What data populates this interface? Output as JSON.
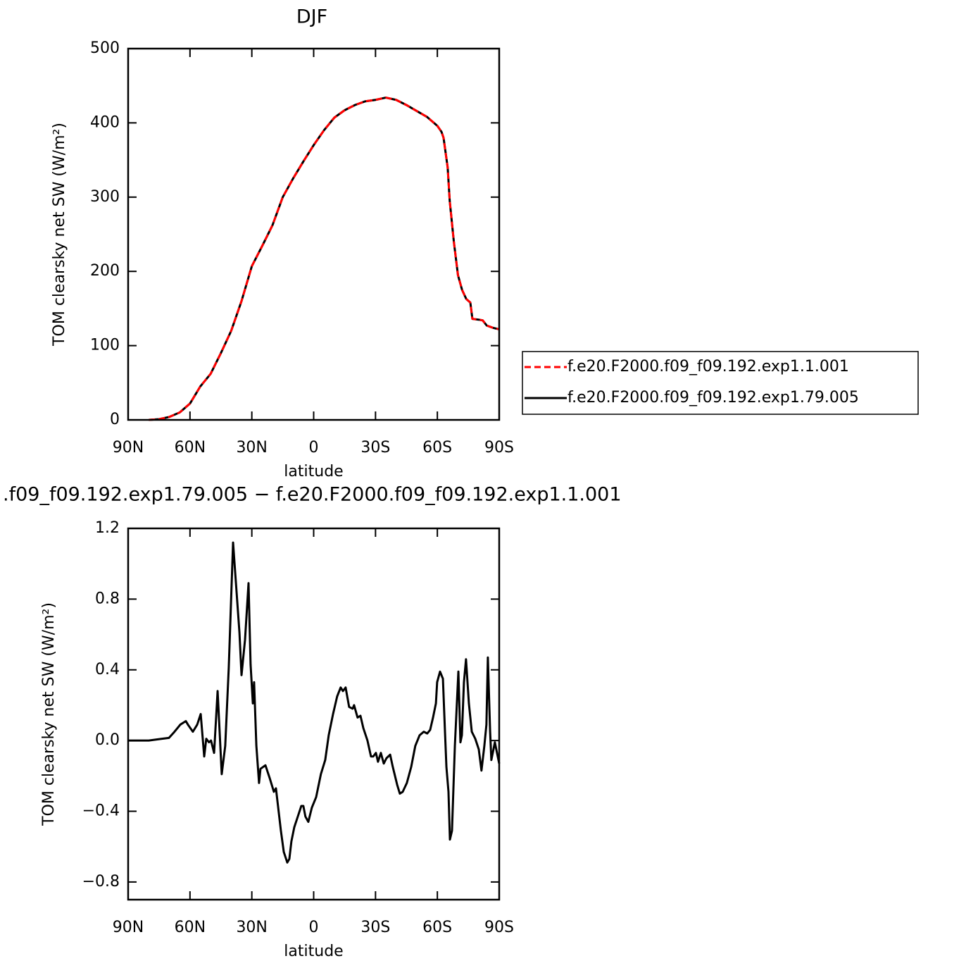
{
  "chart_data": [
    {
      "type": "line",
      "title": "DJF",
      "x_label": "latitude",
      "y_label": "TOM clearsky net SW (W/m²)",
      "x": [
        80,
        75,
        70,
        65,
        60,
        55,
        50,
        45,
        40,
        35,
        30,
        25,
        20,
        15,
        10,
        5,
        0,
        -5,
        -10,
        -15,
        -20,
        -25,
        -30,
        -35,
        -40,
        -45,
        -50,
        -55,
        -60,
        -62,
        -63,
        -65,
        -66,
        -68,
        -70,
        -72,
        -74,
        -76,
        -77,
        -80,
        -82,
        -84,
        -87,
        -90
      ],
      "xlim": [
        90,
        -90
      ],
      "xticks": [
        {
          "value": 90,
          "label": "90N"
        },
        {
          "value": 60,
          "label": "60N"
        },
        {
          "value": 30,
          "label": "30N"
        },
        0,
        {
          "value": -30,
          "label": "30S"
        },
        {
          "value": -60,
          "label": "60S"
        },
        {
          "value": -90,
          "label": "90S"
        }
      ],
      "ylim": [
        0,
        500
      ],
      "yticks": [
        0,
        100,
        200,
        300,
        400,
        500
      ],
      "legend": "right",
      "series": [
        {
          "name": "f.e20.F2000.f09_f09.192.exp1.1.001",
          "color": "#ff0000",
          "dash": "dashed",
          "values": [
            0,
            1,
            4,
            10,
            22,
            45,
            62,
            90,
            120,
            160,
            207,
            234,
            262,
            300,
            325,
            348,
            370,
            390,
            407,
            417,
            424,
            429,
            431,
            434,
            431,
            424,
            416,
            408,
            396,
            388,
            380,
            340,
            295,
            240,
            195,
            175,
            163,
            158,
            136,
            135,
            134,
            127,
            124,
            122
          ]
        },
        {
          "name": "f.e20.F2000.f09_f09.192.exp1.79.005",
          "color": "#000000",
          "dash": "solid",
          "values": [
            0,
            1,
            4,
            10,
            22,
            45,
            62,
            90,
            120,
            160,
            207,
            234,
            262,
            300,
            325,
            348,
            370,
            390,
            407,
            417,
            424,
            429,
            431,
            434,
            431,
            424,
            416,
            408,
            396,
            388,
            380,
            340,
            295,
            240,
            195,
            175,
            163,
            158,
            136,
            135,
            134,
            127,
            124,
            122
          ]
        }
      ]
    },
    {
      "type": "line",
      "title": ".f09_f09.192.exp1.79.005 − f.e20.F2000.f09_f09.192.exp1.1.001",
      "x_label": "latitude",
      "y_label": "TOM clearsky net SW (W/m²)",
      "x": [
        90,
        80,
        73.6,
        70.2,
        67.5,
        64.7,
        62,
        61,
        58.6,
        56.5,
        54.8,
        53.1,
        52.1,
        50.8,
        49.8,
        48.3,
        46.6,
        44.6,
        42.9,
        41.2,
        39.1,
        37.7,
        36,
        35,
        33.3,
        31.6,
        30.6,
        29.5,
        28.9,
        27.8,
        26.5,
        25.8,
        23.4,
        21.4,
        19.3,
        18.3,
        16.9,
        15.9,
        14.5,
        12.8,
        11.8,
        10.8,
        9.4,
        7.7,
        6,
        5,
        4,
        2.6,
        0.9,
        -1.2,
        -3.5,
        -5.6,
        -7.3,
        -9.4,
        -11.4,
        -13.1,
        -14.2,
        -15.5,
        -17.2,
        -18.9,
        -19.6,
        -21.3,
        -22.7,
        -24.1,
        -26.1,
        -27.8,
        -28.9,
        -30.2,
        -31.2,
        -32.6,
        -34,
        -35.3,
        -37.1,
        -38.4,
        -40.5,
        -41.8,
        -43.2,
        -45.2,
        -47.3,
        -49.3,
        -51.4,
        -53.4,
        -55.1,
        -56.5,
        -57.9,
        -59.3,
        -59.9,
        -61.3,
        -62.7,
        -63.7,
        -64.4,
        -65.4,
        -66.1,
        -67.1,
        -68.5,
        -70.2,
        -71.2,
        -71.9,
        -72.9,
        -73.9,
        -75.3,
        -76.7,
        -78.4,
        -80.1,
        -81.4,
        -82.8,
        -83.8,
        -84.5,
        -85.6,
        -86.2,
        -87.9,
        -90
      ],
      "xlim": [
        90,
        -90
      ],
      "xticks": [
        {
          "value": 90,
          "label": "90N"
        },
        {
          "value": 60,
          "label": "60N"
        },
        {
          "value": 30,
          "label": "30N"
        },
        0,
        {
          "value": -30,
          "label": "30S"
        },
        {
          "value": -60,
          "label": "60S"
        },
        {
          "value": -90,
          "label": "90S"
        }
      ],
      "ylim": [
        -0.9,
        1.2
      ],
      "yticks": [
        {
          "value": -0.8,
          "label": "−0.8"
        },
        {
          "value": -0.4,
          "label": "−0.4"
        },
        {
          "value": 0,
          "label": "0.0"
        },
        0.4,
        0.8,
        1.2
      ],
      "series": [
        {
          "color": "#000000",
          "dash": "solid",
          "values": [
            0,
            0,
            0.01,
            0.015,
            0.05,
            0.09,
            0.11,
            0.09,
            0.05,
            0.09,
            0.15,
            -0.09,
            0.01,
            -0.01,
            0,
            -0.07,
            0.28,
            -0.19,
            -0.03,
            0.41,
            1.12,
            0.89,
            0.61,
            0.37,
            0.57,
            0.89,
            0.43,
            0.21,
            0.33,
            -0.03,
            -0.24,
            -0.16,
            -0.14,
            -0.21,
            -0.29,
            -0.27,
            -0.41,
            -0.51,
            -0.63,
            -0.69,
            -0.67,
            -0.57,
            -0.49,
            -0.43,
            -0.37,
            -0.37,
            -0.43,
            -0.46,
            -0.38,
            -0.32,
            -0.19,
            -0.11,
            0.03,
            0.15,
            0.25,
            0.3,
            0.28,
            0.3,
            0.19,
            0.18,
            0.2,
            0.13,
            0.14,
            0.07,
            0,
            -0.09,
            -0.09,
            -0.07,
            -0.12,
            -0.07,
            -0.13,
            -0.1,
            -0.08,
            -0.15,
            -0.25,
            -0.3,
            -0.29,
            -0.24,
            -0.15,
            -0.03,
            0.03,
            0.05,
            0.04,
            0.06,
            0.13,
            0.21,
            0.33,
            0.39,
            0.35,
            0.05,
            -0.15,
            -0.29,
            -0.56,
            -0.51,
            -0.03,
            0.39,
            -0.01,
            0.03,
            0.33,
            0.46,
            0.21,
            0.05,
            0.01,
            -0.05,
            -0.17,
            -0.03,
            0.09,
            0.47,
            0.05,
            -0.11,
            -0.01,
            -0.13
          ]
        }
      ]
    }
  ]
}
